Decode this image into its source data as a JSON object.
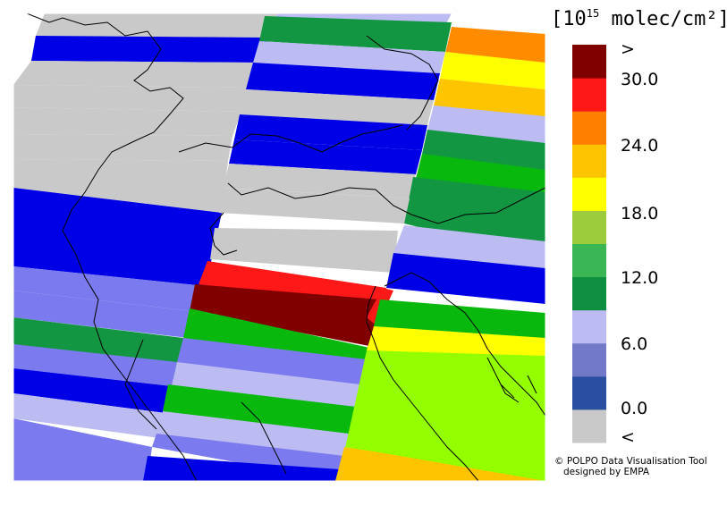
{
  "units": {
    "prefix": "[10",
    "exponent": "15",
    "suffix": " molec/cm²]"
  },
  "legend": {
    "colors": [
      "#c9c9c9",
      "#2a4ea0",
      "#7279c8",
      "#bcbcf2",
      "#0d8f3f",
      "#3ab654",
      "#9ccc3c",
      "#ffff00",
      "#ffc400",
      "#ff7f00",
      "#ff1818",
      "#800000"
    ],
    "tick_labels": [
      ">",
      "30.0",
      "24.0",
      "18.0",
      "12.0",
      "6.0",
      "0.0",
      "<"
    ]
  },
  "credit": {
    "line1": "© POLPO Data Visualisation Tool",
    "line2": "designed by EMPA"
  },
  "map_colors": {
    "gray": "#c9c9c9",
    "blue": "#0000e6",
    "periwinkle": "#7b7bef",
    "lavender": "#bcbcf2",
    "darkgreen": "#139642",
    "green": "#08b80c",
    "lime": "#94ff00",
    "yellow": "#ffff00",
    "amber": "#ffc400",
    "orange": "#ff8c00",
    "red": "#ff1818",
    "darkred": "#800000"
  }
}
